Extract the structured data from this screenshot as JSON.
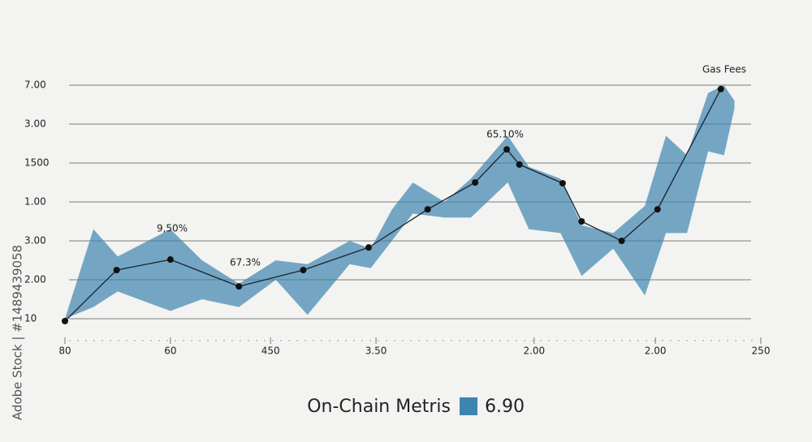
{
  "chart_data": {
    "type": "line",
    "watermark": "Adobe Stock | #1489439058",
    "xlim": [
      0,
      6.6
    ],
    "ylim": [
      -0.5,
      6.5
    ],
    "xticks": [
      {
        "value": 0,
        "label": "80"
      },
      {
        "value": 1,
        "label": "60"
      },
      {
        "value": 1.95,
        "label": "450"
      },
      {
        "value": 2.95,
        "label": "3.50"
      },
      {
        "value": 4.45,
        "label": "2.00"
      },
      {
        "value": 5.6,
        "label": "2.00"
      },
      {
        "value": 6.6,
        "label": "250"
      }
    ],
    "yticks": [
      {
        "value": 0,
        "label": "10"
      },
      {
        "value": 1,
        "label": "2.00"
      },
      {
        "value": 2,
        "label": "3.00"
      },
      {
        "value": 3,
        "label": "1.00"
      },
      {
        "value": 4,
        "label": "1500"
      },
      {
        "value": 5,
        "label": "3.00"
      },
      {
        "value": 6,
        "label": "7.00"
      }
    ],
    "grid": true,
    "annotations": [
      "9,50%",
      "67.3%",
      "65.10%",
      "Gas Fees"
    ],
    "band": {
      "color": "#3d84b0",
      "x": [
        0,
        0.27,
        0.5,
        1.0,
        1.3,
        1.65,
        2.0,
        2.3,
        2.7,
        2.9,
        3.1,
        3.3,
        3.6,
        3.85,
        4.2,
        4.4,
        4.7,
        4.9,
        5.2,
        5.5,
        5.7,
        5.9,
        6.1,
        6.25,
        6.35
      ],
      "upper": [
        0,
        2.3,
        1.6,
        2.3,
        1.5,
        0.9,
        1.5,
        1.4,
        2.0,
        1.8,
        2.8,
        3.5,
        3.0,
        3.6,
        4.7,
        3.9,
        3.6,
        2.4,
        2.2,
        2.9,
        4.7,
        4.2,
        5.8,
        6.0,
        5.6
      ],
      "lower": [
        0,
        0.3,
        0.7,
        0.2,
        0.5,
        0.3,
        1.0,
        0.1,
        1.4,
        1.3,
        2.0,
        2.7,
        2.6,
        2.6,
        3.5,
        2.3,
        2.2,
        1.1,
        1.8,
        0.6,
        2.2,
        2.2,
        4.3,
        4.2,
        5.4
      ]
    },
    "series": [
      {
        "name": "On-Chain Metris",
        "color": "#1e2833",
        "x": [
          0,
          0.49,
          1.0,
          1.65,
          2.26,
          2.88,
          3.44,
          3.89,
          4.19,
          4.31,
          4.72,
          4.9,
          5.28,
          5.62,
          6.22
        ],
        "values": [
          -0.06,
          1.25,
          1.52,
          0.83,
          1.25,
          1.83,
          2.81,
          3.5,
          4.35,
          3.96,
          3.48,
          2.5,
          2.0,
          2.81,
          5.9
        ]
      }
    ],
    "legend_value": "6.90"
  }
}
